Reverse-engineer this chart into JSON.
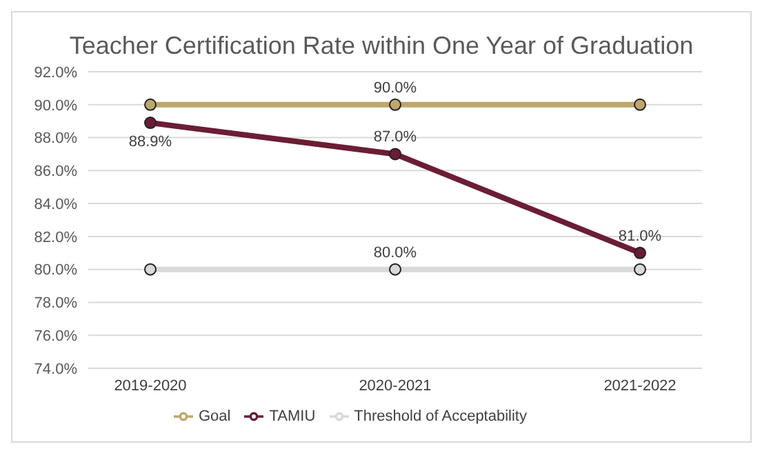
{
  "chart_data": {
    "type": "line",
    "title": "Teacher Certification Rate within One Year of Graduation",
    "categories": [
      "2019-2020",
      "2020-2021",
      "2021-2022"
    ],
    "series": [
      {
        "name": "Goal",
        "color": "#bfa76a",
        "values": [
          90,
          90,
          90
        ],
        "value_labels": [
          null,
          "90.0%",
          null
        ]
      },
      {
        "name": "TAMIU",
        "color": "#6b1d34",
        "values": [
          88.9,
          87,
          81
        ],
        "value_labels": [
          "88.9%",
          "87.0%",
          "81.0%"
        ]
      },
      {
        "name": "Threshold of Acceptability",
        "color": "#d9d9d9",
        "values": [
          80,
          80,
          80
        ],
        "value_labels": [
          null,
          "80.0%",
          null
        ]
      }
    ],
    "ylim": [
      74,
      92
    ],
    "yticks": [
      {
        "value": 74,
        "label": "74.0%"
      },
      {
        "value": 76,
        "label": "76.0%"
      },
      {
        "value": 78,
        "label": "78.0%"
      },
      {
        "value": 80,
        "label": "80.0%"
      },
      {
        "value": 82,
        "label": "82.0%"
      },
      {
        "value": 84,
        "label": "84.0%"
      },
      {
        "value": 86,
        "label": "86.0%"
      },
      {
        "value": 88,
        "label": "88.0%"
      },
      {
        "value": 90,
        "label": "90.0%"
      },
      {
        "value": 92,
        "label": "92.0%"
      }
    ],
    "grid": "y",
    "legend": "bottom",
    "marker": "circle",
    "line_style": "solid"
  }
}
